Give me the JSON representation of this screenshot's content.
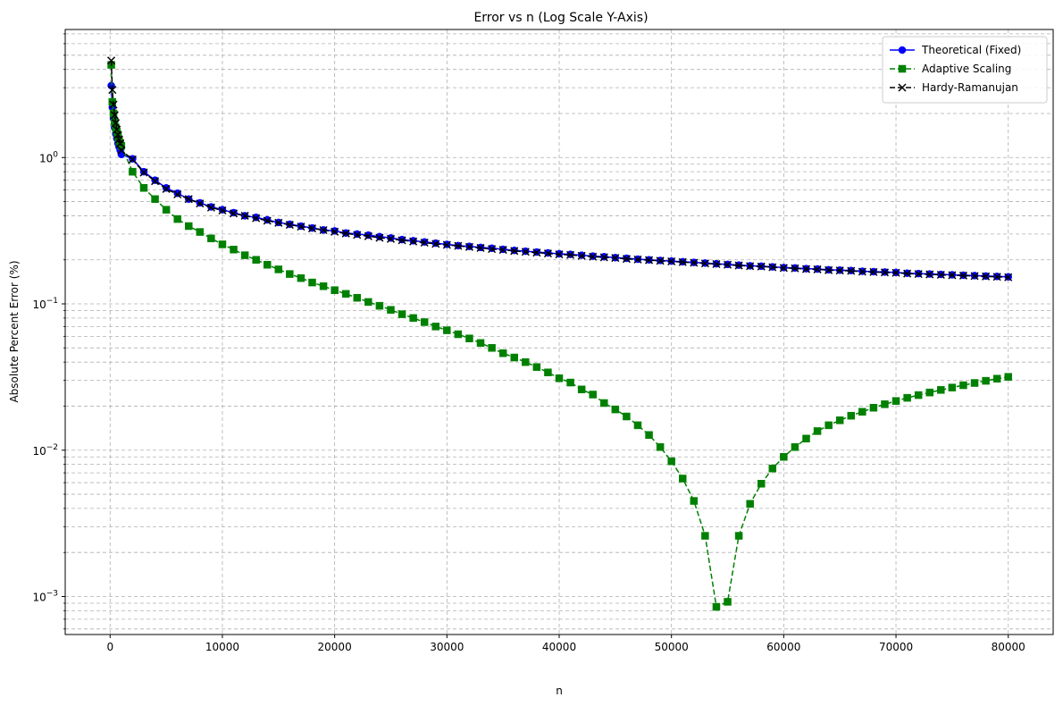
{
  "chart_data": {
    "type": "line",
    "title": "Error vs n (Log Scale Y-Axis)",
    "xlabel": "n",
    "ylabel": "Absolute Percent Error (%)",
    "xlim": [
      -4000,
      84000
    ],
    "ylim": [
      0.00055,
      7.5
    ],
    "yscale": "log",
    "grid": true,
    "legend_position": "top-right",
    "x_ticks": [
      0,
      10000,
      20000,
      30000,
      40000,
      50000,
      60000,
      70000,
      80000
    ],
    "x_tick_labels": [
      "0",
      "10000",
      "20000",
      "30000",
      "40000",
      "50000",
      "60000",
      "70000",
      "80000"
    ],
    "y_ticks": [
      0.001,
      0.01,
      0.1,
      1
    ],
    "y_tick_labels": [
      {
        "base": "10",
        "exp": "−3"
      },
      {
        "base": "10",
        "exp": "−2"
      },
      {
        "base": "10",
        "exp": "−1"
      },
      {
        "base": "10",
        "exp": "0"
      }
    ],
    "x": [
      100,
      200,
      300,
      400,
      500,
      600,
      700,
      800,
      900,
      1000,
      2000,
      3000,
      4000,
      5000,
      6000,
      7000,
      8000,
      9000,
      10000,
      11000,
      12000,
      13000,
      14000,
      15000,
      16000,
      17000,
      18000,
      19000,
      20000,
      21000,
      22000,
      23000,
      24000,
      25000,
      26000,
      27000,
      28000,
      29000,
      30000,
      31000,
      32000,
      33000,
      34000,
      35000,
      36000,
      37000,
      38000,
      39000,
      40000,
      41000,
      42000,
      43000,
      44000,
      45000,
      46000,
      47000,
      48000,
      49000,
      50000,
      51000,
      52000,
      53000,
      54000,
      55000,
      56000,
      57000,
      58000,
      59000,
      60000,
      61000,
      62000,
      63000,
      64000,
      65000,
      66000,
      67000,
      68000,
      69000,
      70000,
      71000,
      72000,
      73000,
      74000,
      75000,
      76000,
      77000,
      78000,
      79000,
      80000
    ],
    "series": [
      {
        "name": "Theoretical (Fixed)",
        "color": "#0000ff",
        "marker": "circle",
        "linestyle": "solid",
        "values": [
          3.1,
          2.2,
          1.85,
          1.6,
          1.45,
          1.35,
          1.25,
          1.18,
          1.12,
          1.05,
          0.98,
          0.8,
          0.7,
          0.62,
          0.57,
          0.52,
          0.49,
          0.46,
          0.44,
          0.42,
          0.4,
          0.39,
          0.375,
          0.36,
          0.35,
          0.34,
          0.33,
          0.32,
          0.315,
          0.305,
          0.3,
          0.295,
          0.288,
          0.282,
          0.275,
          0.27,
          0.265,
          0.26,
          0.255,
          0.25,
          0.247,
          0.243,
          0.24,
          0.236,
          0.232,
          0.229,
          0.226,
          0.223,
          0.22,
          0.218,
          0.215,
          0.212,
          0.21,
          0.207,
          0.205,
          0.202,
          0.2,
          0.198,
          0.196,
          0.194,
          0.192,
          0.19,
          0.188,
          0.186,
          0.184,
          0.182,
          0.181,
          0.179,
          0.177,
          0.176,
          0.174,
          0.173,
          0.171,
          0.17,
          0.169,
          0.167,
          0.166,
          0.165,
          0.164,
          0.162,
          0.161,
          0.16,
          0.159,
          0.158,
          0.157,
          0.156,
          0.155,
          0.154,
          0.153
        ]
      },
      {
        "name": "Adaptive Scaling",
        "color": "#008000",
        "marker": "square",
        "linestyle": "dashed",
        "values": [
          4.3,
          2.4,
          2.0,
          1.75,
          1.6,
          1.5,
          1.4,
          1.3,
          1.25,
          1.2,
          0.8,
          0.62,
          0.52,
          0.44,
          0.38,
          0.34,
          0.31,
          0.28,
          0.255,
          0.235,
          0.215,
          0.2,
          0.185,
          0.172,
          0.16,
          0.15,
          0.14,
          0.132,
          0.124,
          0.117,
          0.11,
          0.103,
          0.097,
          0.091,
          0.085,
          0.08,
          0.075,
          0.07,
          0.066,
          0.062,
          0.058,
          0.054,
          0.05,
          0.046,
          0.043,
          0.04,
          0.037,
          0.034,
          0.031,
          0.029,
          0.026,
          0.024,
          0.021,
          0.019,
          0.017,
          0.0148,
          0.0127,
          0.0105,
          0.0084,
          0.0064,
          0.0045,
          0.0026,
          0.00085,
          0.00092,
          0.0026,
          0.0043,
          0.0059,
          0.0075,
          0.009,
          0.0105,
          0.012,
          0.0135,
          0.0148,
          0.016,
          0.0172,
          0.0183,
          0.0195,
          0.0206,
          0.0217,
          0.0228,
          0.0238,
          0.0248,
          0.0258,
          0.0268,
          0.0278,
          0.0288,
          0.0298,
          0.0308,
          0.0317
        ]
      },
      {
        "name": "Hardy-Ramanujan",
        "color": "#000000",
        "marker": "x",
        "linestyle": "dashed",
        "values": [
          4.6,
          2.9,
          2.3,
          1.95,
          1.72,
          1.55,
          1.43,
          1.33,
          1.25,
          1.12,
          0.97,
          0.79,
          0.69,
          0.61,
          0.56,
          0.52,
          0.485,
          0.455,
          0.435,
          0.415,
          0.4,
          0.385,
          0.37,
          0.358,
          0.347,
          0.337,
          0.328,
          0.319,
          0.311,
          0.303,
          0.296,
          0.29,
          0.283,
          0.278,
          0.272,
          0.267,
          0.262,
          0.257,
          0.253,
          0.249,
          0.245,
          0.241,
          0.237,
          0.234,
          0.23,
          0.227,
          0.224,
          0.221,
          0.218,
          0.216,
          0.213,
          0.21,
          0.208,
          0.206,
          0.203,
          0.201,
          0.199,
          0.197,
          0.195,
          0.193,
          0.191,
          0.189,
          0.187,
          0.185,
          0.183,
          0.181,
          0.18,
          0.178,
          0.176,
          0.175,
          0.173,
          0.172,
          0.17,
          0.169,
          0.168,
          0.166,
          0.165,
          0.164,
          0.163,
          0.161,
          0.16,
          0.159,
          0.158,
          0.157,
          0.156,
          0.155,
          0.154,
          0.153,
          0.152
        ]
      }
    ]
  }
}
